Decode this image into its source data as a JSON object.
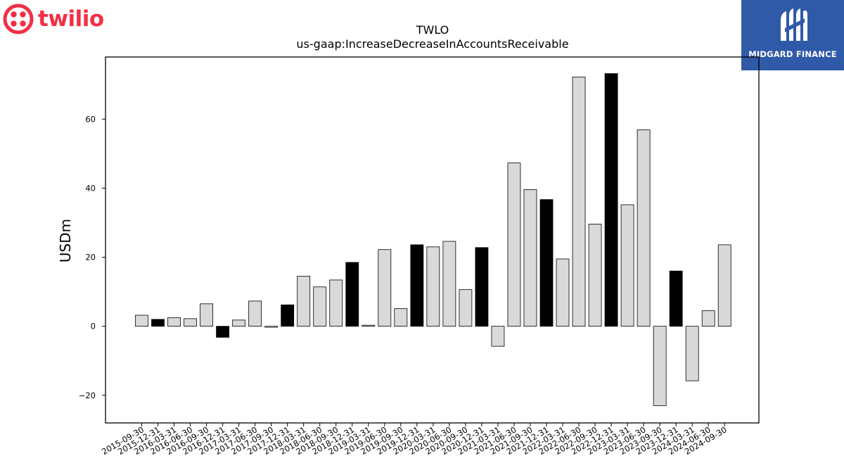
{
  "brand": {
    "left_logo_text": "twilio",
    "left_logo_color": "#f22f46",
    "right_logo_text": "MIDGARD FINANCE",
    "right_logo_bg": "#2f5aa8"
  },
  "chart_data": {
    "type": "bar",
    "title": "TWLO",
    "subtitle": "us-gaap:IncreaseDecreaseInAccountsReceivable",
    "xlabel": "",
    "ylabel": "USDm",
    "ylim": [
      -28,
      78
    ],
    "yticks": [
      -20,
      0,
      20,
      40,
      60
    ],
    "grid": false,
    "colors": {
      "q4": "#000000",
      "other": "#d9d9d9",
      "edge": "#000000"
    },
    "categories": [
      "2015-09-30",
      "2015-12-31",
      "2016-03-31",
      "2016-06-30",
      "2016-09-30",
      "2016-12-31",
      "2017-03-31",
      "2017-06-30",
      "2017-09-30",
      "2017-12-31",
      "2018-03-31",
      "2018-06-30",
      "2018-09-30",
      "2018-12-31",
      "2019-03-31",
      "2019-06-30",
      "2019-09-30",
      "2019-12-31",
      "2020-03-31",
      "2020-06-30",
      "2020-09-30",
      "2020-12-31",
      "2021-03-31",
      "2021-06-30",
      "2021-09-30",
      "2021-12-31",
      "2022-03-31",
      "2022-06-30",
      "2022-09-30",
      "2022-12-31",
      "2023-03-31",
      "2023-06-30",
      "2023-09-30",
      "2023-12-31",
      "2024-03-31",
      "2024-06-30",
      "2024-09-30"
    ],
    "values": [
      3.2,
      2.0,
      2.5,
      2.2,
      6.5,
      -3.2,
      1.8,
      7.3,
      -0.3,
      6.2,
      14.5,
      11.4,
      13.4,
      18.5,
      0.3,
      22.2,
      5.1,
      23.6,
      23.0,
      24.6,
      10.6,
      22.8,
      -5.8,
      47.3,
      39.6,
      36.7,
      19.5,
      72.2,
      29.6,
      73.2,
      35.2,
      56.9,
      -23.0,
      16.0,
      -15.8,
      4.5,
      23.6
    ]
  }
}
